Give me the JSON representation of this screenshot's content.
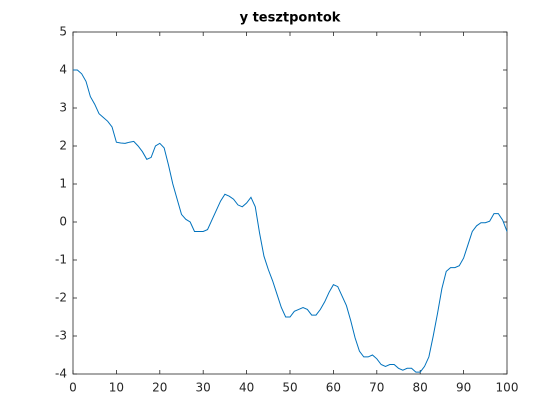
{
  "chart_data": {
    "type": "line",
    "title": "y tesztpontok",
    "x": [
      0,
      1,
      2,
      3,
      4,
      5,
      6,
      7,
      8,
      9,
      10,
      11,
      12,
      13,
      14,
      15,
      16,
      17,
      18,
      19,
      20,
      21,
      22,
      23,
      24,
      25,
      26,
      27,
      28,
      29,
      30,
      31,
      32,
      33,
      34,
      35,
      36,
      37,
      38,
      39,
      40,
      41,
      42,
      43,
      44,
      45,
      46,
      47,
      48,
      49,
      50,
      51,
      52,
      53,
      54,
      55,
      56,
      57,
      58,
      59,
      60,
      61,
      62,
      63,
      64,
      65,
      66,
      67,
      68,
      69,
      70,
      71,
      72,
      73,
      74,
      75,
      76,
      77,
      78,
      79,
      80,
      81,
      82,
      83,
      84,
      85,
      86,
      87,
      88,
      89,
      90,
      91,
      92,
      93,
      94,
      95,
      96,
      97,
      98,
      99,
      100
    ],
    "values": [
      4.0,
      4.0,
      3.9,
      3.7,
      3.3,
      3.1,
      2.85,
      2.75,
      2.65,
      2.5,
      2.1,
      2.08,
      2.07,
      2.1,
      2.12,
      2.0,
      1.85,
      1.65,
      1.7,
      2.0,
      2.07,
      1.95,
      1.5,
      1.0,
      0.6,
      0.2,
      0.07,
      0.0,
      -0.25,
      -0.25,
      -0.25,
      -0.2,
      0.05,
      0.3,
      0.55,
      0.73,
      0.68,
      0.6,
      0.45,
      0.4,
      0.5,
      0.65,
      0.4,
      -0.3,
      -0.9,
      -1.25,
      -1.55,
      -1.9,
      -2.25,
      -2.5,
      -2.5,
      -2.35,
      -2.3,
      -2.25,
      -2.3,
      -2.45,
      -2.45,
      -2.3,
      -2.1,
      -1.85,
      -1.65,
      -1.7,
      -1.95,
      -2.2,
      -2.6,
      -3.05,
      -3.4,
      -3.55,
      -3.55,
      -3.5,
      -3.6,
      -3.75,
      -3.8,
      -3.75,
      -3.75,
      -3.85,
      -3.9,
      -3.85,
      -3.85,
      -3.95,
      -3.95,
      -3.8,
      -3.55,
      -3.0,
      -2.4,
      -1.75,
      -1.3,
      -1.2,
      -1.2,
      -1.15,
      -0.95,
      -0.6,
      -0.25,
      -0.1,
      -0.02,
      -0.02,
      0.02,
      0.22,
      0.22,
      0.05,
      -0.25
    ],
    "color": "#0072bd",
    "xlim": [
      0,
      100
    ],
    "xticks": [
      0,
      10,
      20,
      30,
      40,
      50,
      60,
      70,
      80,
      90,
      100
    ],
    "ylim": [
      -4,
      5
    ],
    "yticks": [
      -4,
      -3,
      -2,
      -1,
      0,
      1,
      2,
      3,
      4,
      5
    ]
  }
}
